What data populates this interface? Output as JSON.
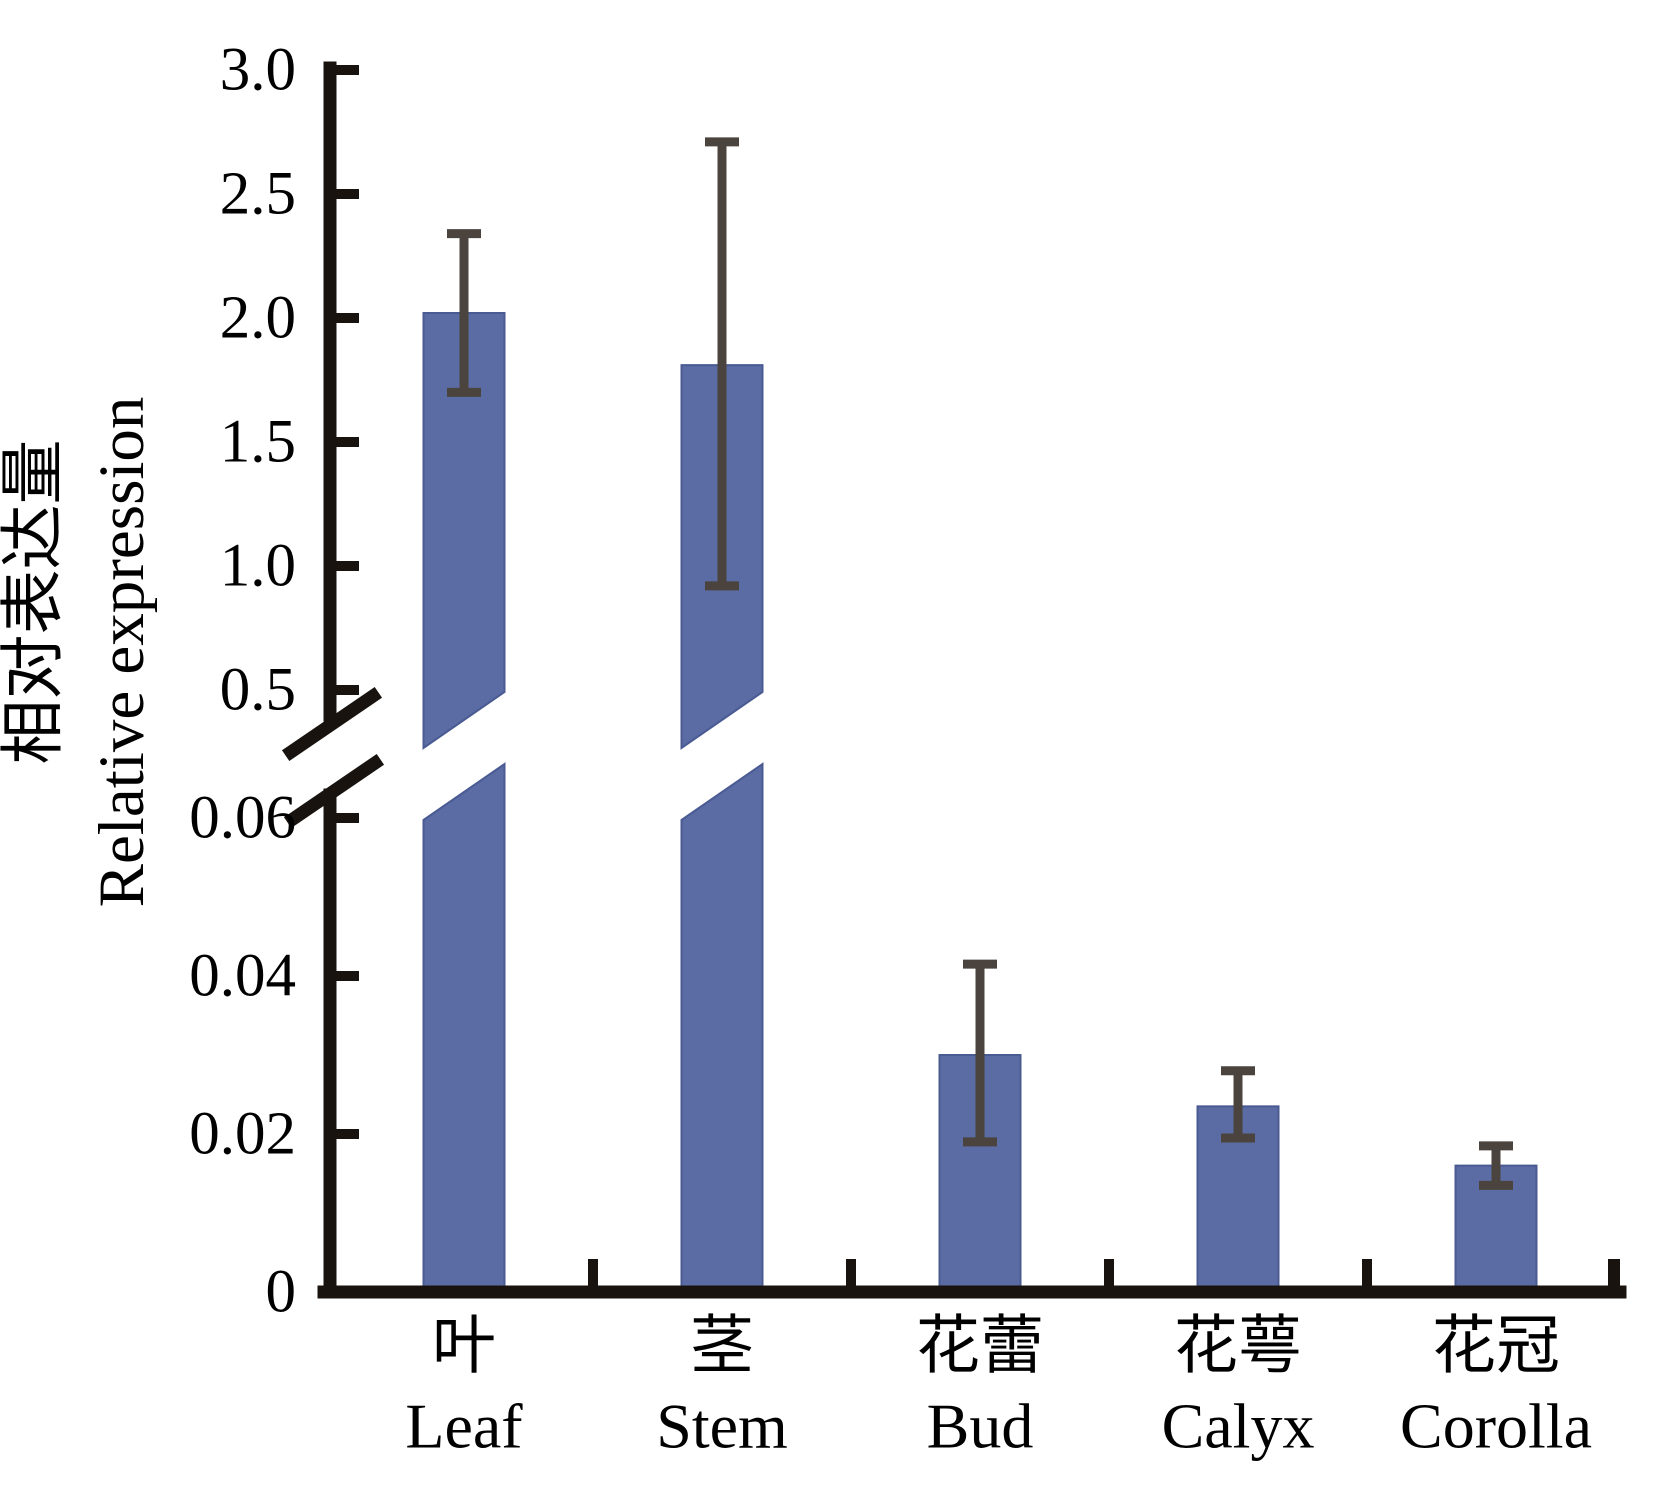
{
  "chart_data": {
    "type": "bar",
    "title": "",
    "ylabel_zh": "相对表达量",
    "ylabel_en": "Relative expression",
    "xlabel": "",
    "grid": false,
    "legend": false,
    "axis_break": {
      "lower_range": [
        0,
        0.06
      ],
      "upper_range": [
        0.5,
        3.0
      ]
    },
    "categories": [
      {
        "zh": "叶",
        "en": "Leaf"
      },
      {
        "zh": "茎",
        "en": "Stem"
      },
      {
        "zh": "花蕾",
        "en": "Bud"
      },
      {
        "zh": "花萼",
        "en": "Calyx"
      },
      {
        "zh": "花冠",
        "en": "Corolla"
      }
    ],
    "values": [
      2.02,
      1.81,
      0.03,
      0.0235,
      0.016
    ],
    "errors": [
      {
        "low": 1.7,
        "high": 2.34
      },
      {
        "low": 0.92,
        "high": 2.71
      },
      {
        "low": 0.019,
        "high": 0.0415
      },
      {
        "low": 0.0195,
        "high": 0.028
      },
      {
        "low": 0.0135,
        "high": 0.0185
      }
    ],
    "upper_ticks": [
      {
        "value": 0.5,
        "label": "0.5"
      },
      {
        "value": 1.0,
        "label": "1.0"
      },
      {
        "value": 1.5,
        "label": "1.5"
      },
      {
        "value": 2.0,
        "label": "2.0"
      },
      {
        "value": 2.5,
        "label": "2.5"
      },
      {
        "value": 3.0,
        "label": "3.0"
      }
    ],
    "lower_ticks": [
      {
        "value": 0,
        "label": "0"
      },
      {
        "value": 0.02,
        "label": "0.02"
      },
      {
        "value": 0.04,
        "label": "0.04"
      },
      {
        "value": 0.06,
        "label": "0.06"
      }
    ],
    "bar_color": "#5b6ba3",
    "bar_edge_color": "#4a5a92",
    "error_color": "#4b443e",
    "axis_color": "#18130f",
    "text_color": "#000000"
  }
}
